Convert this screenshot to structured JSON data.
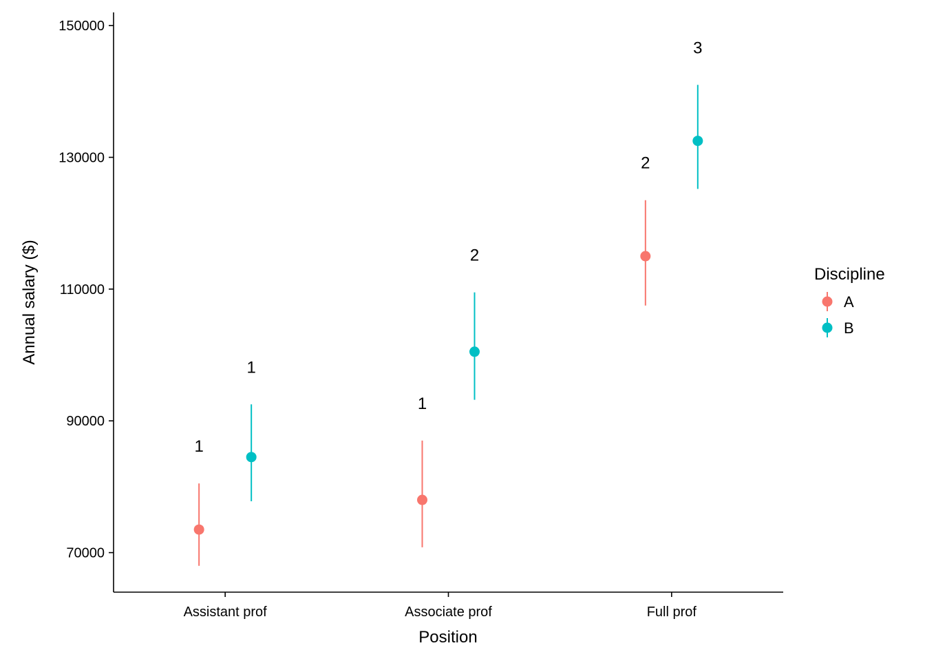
{
  "chart_data": {
    "type": "scatter",
    "xlabel": "Position",
    "ylabel": "Annual salary ($)",
    "categories": [
      "Assistant prof",
      "Associate prof",
      "Full prof"
    ],
    "ylim": [
      64000,
      152000
    ],
    "yticks": [
      70000,
      90000,
      110000,
      130000,
      150000
    ],
    "series": [
      {
        "name": "A",
        "color": "#F8766D",
        "values": [
          73500,
          78000,
          115000
        ],
        "lower": [
          68000,
          70800,
          107500
        ],
        "upper": [
          80500,
          87000,
          123500
        ],
        "group_labels": [
          "1",
          "1",
          "2"
        ]
      },
      {
        "name": "B",
        "color": "#00BFC4",
        "values": [
          84500,
          100500,
          132500
        ],
        "lower": [
          77800,
          93200,
          125200
        ],
        "upper": [
          92500,
          109500,
          141000
        ],
        "group_labels": [
          "1",
          "2",
          "3"
        ]
      }
    ],
    "legend": {
      "title": "Discipline",
      "position": "right"
    },
    "grid": false
  }
}
